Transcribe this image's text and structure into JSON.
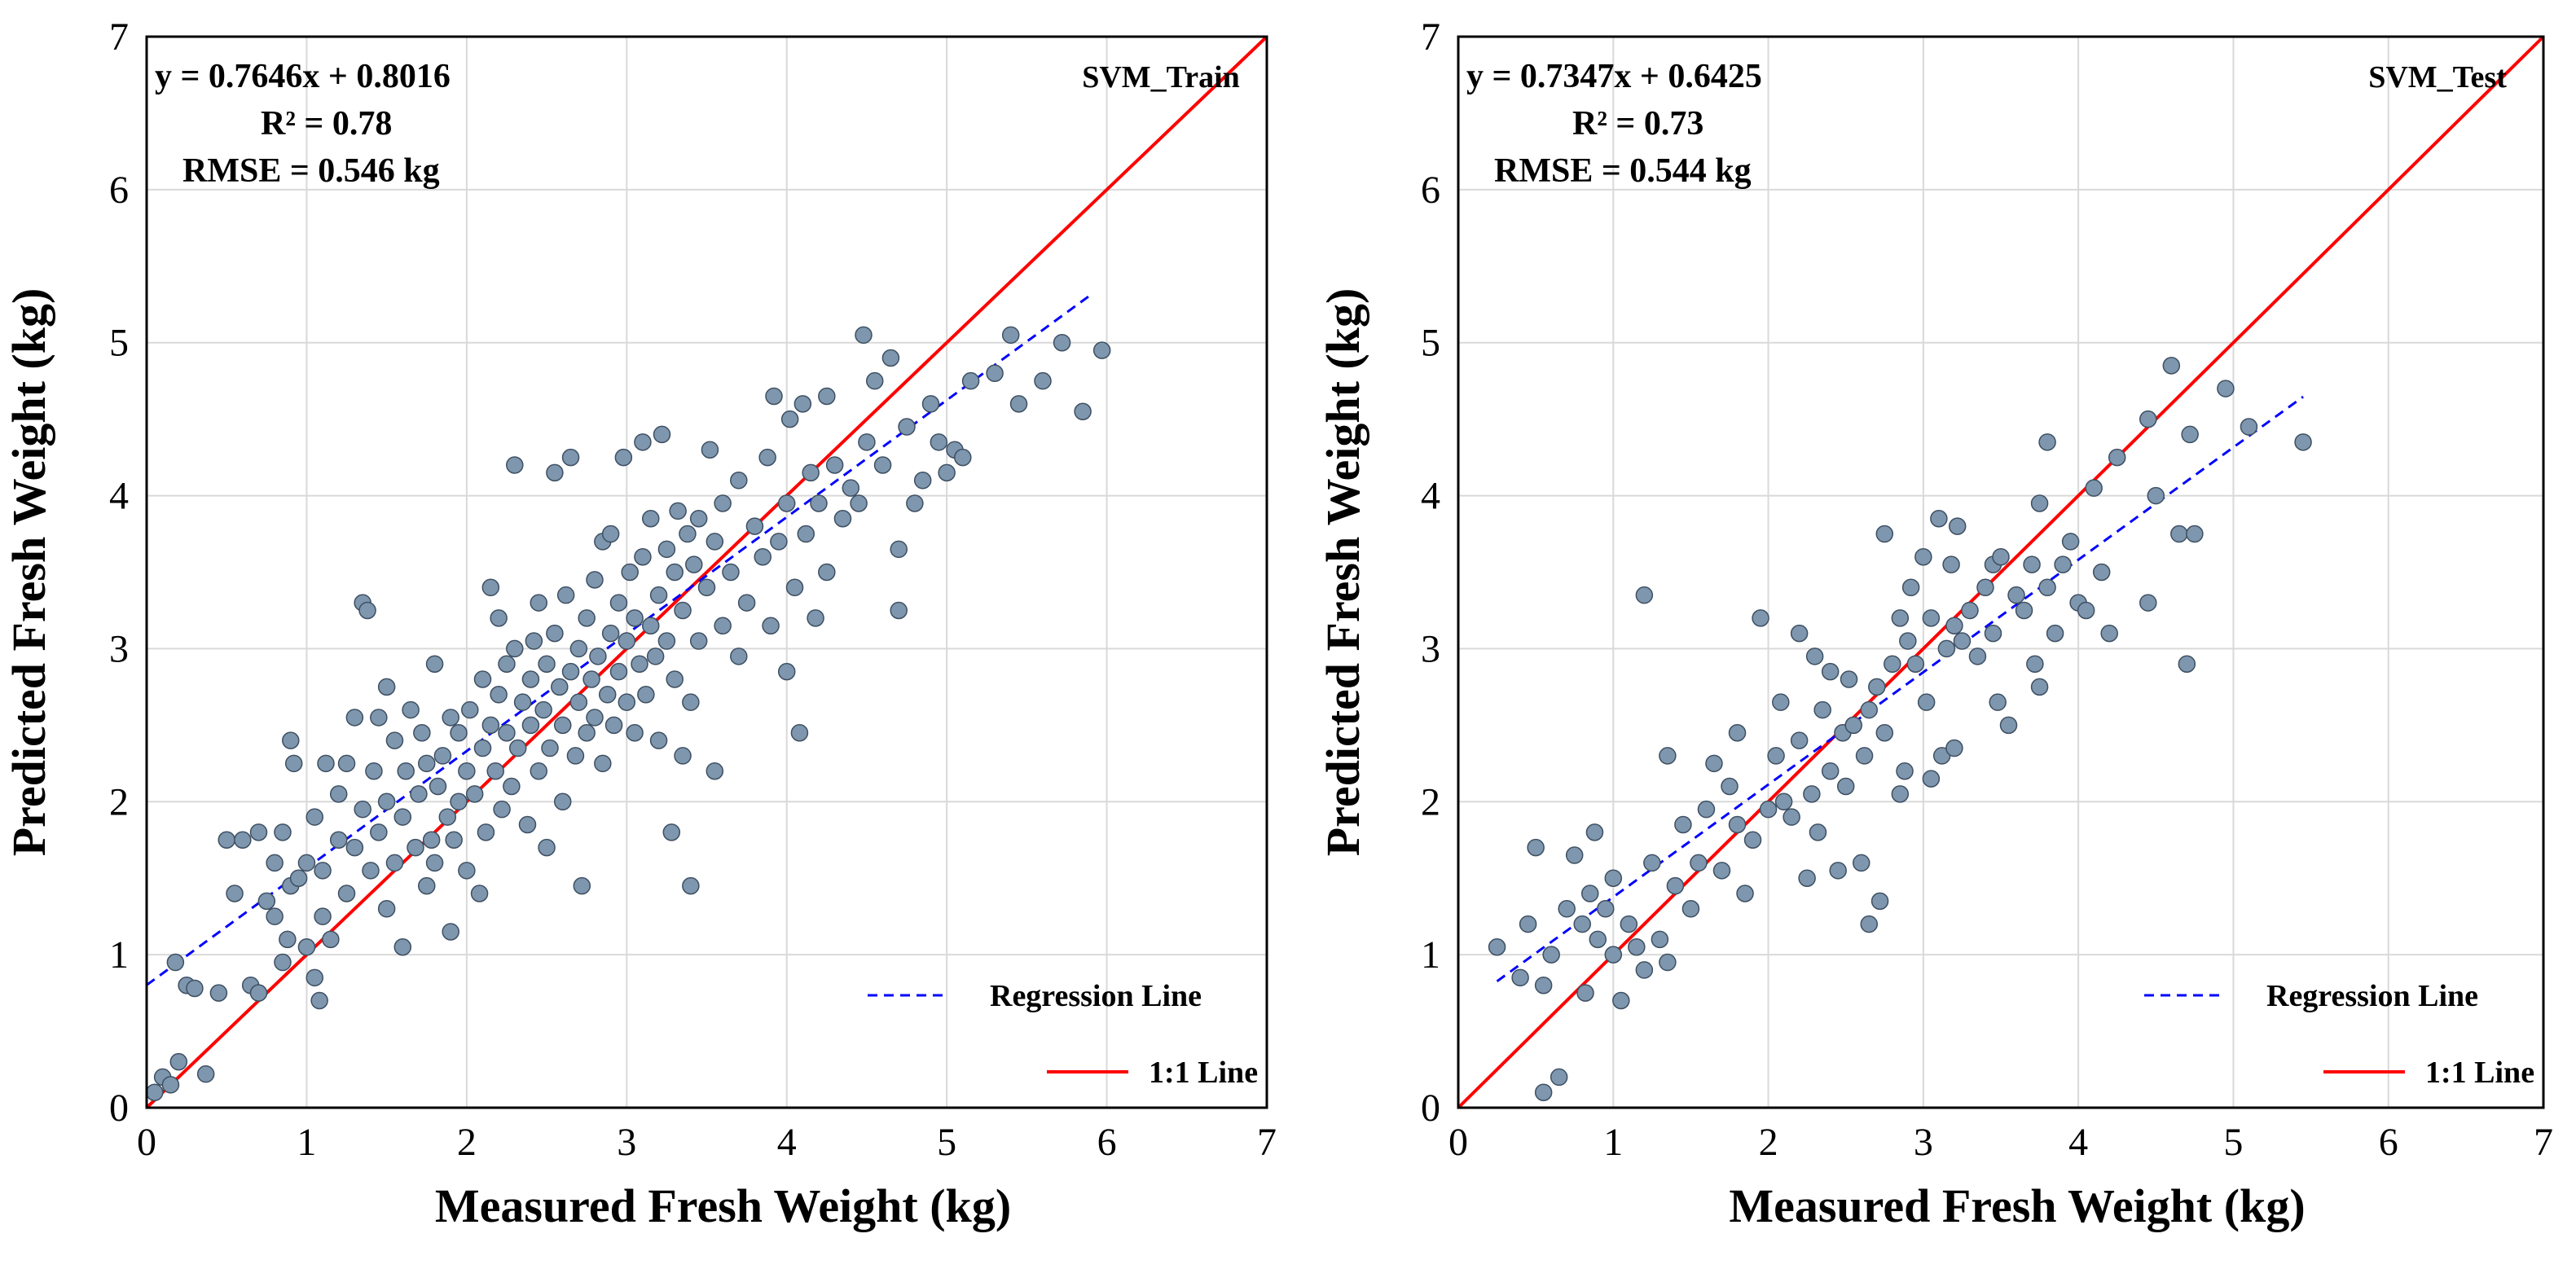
{
  "colors": {
    "one_to_one": "#ff0000",
    "regression": "#0000ff",
    "point_fill": "#7e97ae",
    "point_stroke": "#3e4f62",
    "grid": "#d9d9d9"
  },
  "chart_data": [
    {
      "type": "scatter",
      "tag": "SVM_Train",
      "equation": "y = 0.7646x + 0.8016",
      "r2": "R² = 0.78",
      "rmse": "RMSE = 0.546 kg",
      "slope": 0.7646,
      "intercept": 0.8016,
      "reg_x_range": [
        0,
        5.9
      ],
      "xlabel": "Measured Fresh Weight (kg)",
      "ylabel": "Predicted  Fresh Weight (kg)",
      "xlim": [
        0,
        7
      ],
      "ylim": [
        0,
        7
      ],
      "xticks": [
        "0",
        "1",
        "2",
        "3",
        "4",
        "5",
        "6",
        "7"
      ],
      "yticks": [
        "0",
        "1",
        "2",
        "3",
        "4",
        "5",
        "6",
        "7"
      ],
      "grid": true,
      "legend": {
        "position": "bottom-right",
        "regression_label": "Regression Line",
        "one_to_one_label": "1:1 Line"
      },
      "points": [
        [
          0.05,
          0.1
        ],
        [
          0.1,
          0.2
        ],
        [
          0.15,
          0.15
        ],
        [
          0.2,
          0.3
        ],
        [
          0.37,
          0.22
        ],
        [
          0.18,
          0.95
        ],
        [
          0.25,
          0.8
        ],
        [
          0.3,
          0.78
        ],
        [
          0.45,
          0.75
        ],
        [
          0.5,
          1.75
        ],
        [
          0.55,
          1.4
        ],
        [
          0.6,
          1.75
        ],
        [
          0.65,
          0.8
        ],
        [
          0.7,
          0.75
        ],
        [
          0.7,
          1.8
        ],
        [
          0.75,
          1.35
        ],
        [
          0.8,
          1.25
        ],
        [
          0.8,
          1.6
        ],
        [
          0.85,
          0.95
        ],
        [
          0.85,
          1.8
        ],
        [
          0.88,
          1.1
        ],
        [
          0.9,
          1.45
        ],
        [
          0.9,
          2.4
        ],
        [
          0.92,
          2.25
        ],
        [
          0.95,
          1.5
        ],
        [
          1.0,
          1.05
        ],
        [
          1.0,
          1.6
        ],
        [
          1.05,
          0.85
        ],
        [
          1.05,
          1.9
        ],
        [
          1.08,
          0.7
        ],
        [
          1.1,
          1.25
        ],
        [
          1.1,
          1.55
        ],
        [
          1.12,
          2.25
        ],
        [
          1.15,
          1.1
        ],
        [
          1.2,
          1.75
        ],
        [
          1.2,
          2.05
        ],
        [
          1.25,
          1.4
        ],
        [
          1.25,
          2.25
        ],
        [
          1.3,
          1.7
        ],
        [
          1.3,
          2.55
        ],
        [
          1.35,
          1.95
        ],
        [
          1.35,
          3.3
        ],
        [
          1.38,
          3.25
        ],
        [
          1.4,
          1.55
        ],
        [
          1.42,
          2.2
        ],
        [
          1.45,
          1.8
        ],
        [
          1.45,
          2.55
        ],
        [
          1.5,
          1.3
        ],
        [
          1.5,
          2.0
        ],
        [
          1.5,
          2.75
        ],
        [
          1.55,
          1.6
        ],
        [
          1.55,
          2.4
        ],
        [
          1.6,
          1.05
        ],
        [
          1.6,
          1.9
        ],
        [
          1.62,
          2.2
        ],
        [
          1.65,
          2.6
        ],
        [
          1.68,
          1.7
        ],
        [
          1.7,
          2.05
        ],
        [
          1.72,
          2.45
        ],
        [
          1.75,
          1.45
        ],
        [
          1.75,
          2.25
        ],
        [
          1.78,
          1.75
        ],
        [
          1.8,
          1.6
        ],
        [
          1.8,
          2.9
        ],
        [
          1.82,
          2.1
        ],
        [
          1.85,
          2.3
        ],
        [
          1.88,
          1.9
        ],
        [
          1.9,
          2.55
        ],
        [
          1.9,
          1.15
        ],
        [
          1.92,
          1.75
        ],
        [
          1.95,
          2.0
        ],
        [
          1.95,
          2.45
        ],
        [
          2.0,
          1.55
        ],
        [
          2.0,
          2.2
        ],
        [
          2.02,
          2.6
        ],
        [
          2.05,
          2.05
        ],
        [
          2.08,
          1.4
        ],
        [
          2.1,
          2.35
        ],
        [
          2.1,
          2.8
        ],
        [
          2.12,
          1.8
        ],
        [
          2.15,
          2.5
        ],
        [
          2.15,
          3.4
        ],
        [
          2.18,
          2.2
        ],
        [
          2.2,
          2.7
        ],
        [
          2.2,
          3.2
        ],
        [
          2.22,
          1.95
        ],
        [
          2.25,
          2.45
        ],
        [
          2.25,
          2.9
        ],
        [
          2.28,
          2.1
        ],
        [
          2.3,
          3.0
        ],
        [
          2.3,
          4.2
        ],
        [
          2.32,
          2.35
        ],
        [
          2.35,
          2.65
        ],
        [
          2.38,
          1.85
        ],
        [
          2.4,
          2.5
        ],
        [
          2.4,
          2.8
        ],
        [
          2.42,
          3.05
        ],
        [
          2.45,
          2.2
        ],
        [
          2.45,
          3.3
        ],
        [
          2.48,
          2.6
        ],
        [
          2.5,
          1.7
        ],
        [
          2.5,
          2.9
        ],
        [
          2.52,
          2.35
        ],
        [
          2.55,
          3.1
        ],
        [
          2.55,
          4.15
        ],
        [
          2.58,
          2.75
        ],
        [
          2.6,
          2.0
        ],
        [
          2.6,
          2.5
        ],
        [
          2.62,
          3.35
        ],
        [
          2.65,
          2.85
        ],
        [
          2.65,
          4.25
        ],
        [
          2.68,
          2.3
        ],
        [
          2.7,
          2.65
        ],
        [
          2.7,
          3.0
        ],
        [
          2.72,
          1.45
        ],
        [
          2.75,
          2.45
        ],
        [
          2.75,
          3.2
        ],
        [
          2.78,
          2.8
        ],
        [
          2.8,
          2.55
        ],
        [
          2.8,
          3.45
        ],
        [
          2.82,
          2.95
        ],
        [
          2.85,
          2.25
        ],
        [
          2.85,
          3.7
        ],
        [
          2.88,
          2.7
        ],
        [
          2.9,
          3.1
        ],
        [
          2.9,
          3.75
        ],
        [
          2.92,
          2.5
        ],
        [
          2.95,
          2.85
        ],
        [
          2.95,
          3.3
        ],
        [
          2.98,
          4.25
        ],
        [
          3.0,
          2.65
        ],
        [
          3.0,
          3.05
        ],
        [
          3.02,
          3.5
        ],
        [
          3.05,
          2.45
        ],
        [
          3.05,
          3.2
        ],
        [
          3.08,
          2.9
        ],
        [
          3.1,
          3.6
        ],
        [
          3.1,
          4.35
        ],
        [
          3.12,
          2.7
        ],
        [
          3.15,
          3.15
        ],
        [
          3.15,
          3.85
        ],
        [
          3.18,
          2.95
        ],
        [
          3.2,
          2.4
        ],
        [
          3.2,
          3.35
        ],
        [
          3.22,
          4.4
        ],
        [
          3.25,
          3.05
        ],
        [
          3.25,
          3.65
        ],
        [
          3.28,
          1.8
        ],
        [
          3.3,
          2.8
        ],
        [
          3.3,
          3.5
        ],
        [
          3.32,
          3.9
        ],
        [
          3.35,
          2.3
        ],
        [
          3.35,
          3.25
        ],
        [
          3.38,
          3.75
        ],
        [
          3.4,
          1.45
        ],
        [
          3.4,
          2.65
        ],
        [
          3.42,
          3.55
        ],
        [
          3.45,
          3.05
        ],
        [
          3.45,
          3.85
        ],
        [
          3.5,
          3.4
        ],
        [
          3.52,
          4.3
        ],
        [
          3.55,
          2.2
        ],
        [
          3.55,
          3.7
        ],
        [
          3.6,
          3.15
        ],
        [
          3.6,
          3.95
        ],
        [
          3.65,
          3.5
        ],
        [
          3.7,
          2.95
        ],
        [
          3.7,
          4.1
        ],
        [
          3.75,
          3.3
        ],
        [
          3.8,
          3.8
        ],
        [
          3.85,
          3.6
        ],
        [
          3.88,
          4.25
        ],
        [
          3.9,
          3.15
        ],
        [
          3.92,
          4.65
        ],
        [
          3.95,
          3.7
        ],
        [
          4.0,
          2.85
        ],
        [
          4.0,
          3.95
        ],
        [
          4.02,
          4.5
        ],
        [
          4.05,
          3.4
        ],
        [
          4.08,
          2.45
        ],
        [
          4.1,
          4.6
        ],
        [
          4.12,
          3.75
        ],
        [
          4.15,
          4.15
        ],
        [
          4.18,
          3.2
        ],
        [
          4.2,
          3.95
        ],
        [
          4.25,
          3.5
        ],
        [
          4.25,
          4.65
        ],
        [
          4.3,
          4.2
        ],
        [
          4.35,
          3.85
        ],
        [
          4.4,
          4.05
        ],
        [
          4.45,
          3.95
        ],
        [
          4.48,
          5.05
        ],
        [
          4.5,
          4.35
        ],
        [
          4.55,
          4.75
        ],
        [
          4.6,
          4.2
        ],
        [
          4.65,
          4.9
        ],
        [
          4.7,
          3.25
        ],
        [
          4.7,
          3.65
        ],
        [
          4.75,
          4.45
        ],
        [
          4.8,
          3.95
        ],
        [
          4.85,
          4.1
        ],
        [
          4.9,
          4.6
        ],
        [
          4.95,
          4.35
        ],
        [
          5.0,
          4.15
        ],
        [
          5.05,
          4.3
        ],
        [
          5.1,
          4.25
        ],
        [
          5.15,
          4.75
        ],
        [
          5.3,
          4.8
        ],
        [
          5.4,
          5.05
        ],
        [
          5.45,
          4.6
        ],
        [
          5.6,
          4.75
        ],
        [
          5.72,
          5.0
        ],
        [
          5.85,
          4.55
        ],
        [
          5.97,
          4.95
        ]
      ]
    },
    {
      "type": "scatter",
      "tag": "SVM_Test",
      "equation": "y = 0.7347x + 0.6425",
      "r2": "R² = 0.73",
      "rmse": "RMSE = 0.544 kg",
      "slope": 0.7347,
      "intercept": 0.6425,
      "reg_x_range": [
        0.25,
        5.45
      ],
      "xlabel": "Measured Fresh Weight (kg)",
      "ylabel": "Predicted  Fresh Weight (kg)",
      "xlim": [
        0,
        7
      ],
      "ylim": [
        0,
        7
      ],
      "xticks": [
        "0",
        "1",
        "2",
        "3",
        "4",
        "5",
        "6",
        "7"
      ],
      "yticks": [
        "0",
        "1",
        "2",
        "3",
        "4",
        "5",
        "6",
        "7"
      ],
      "grid": true,
      "legend": {
        "position": "bottom-right",
        "regression_label": "Regression Line",
        "one_to_one_label": "1:1 Line"
      },
      "points": [
        [
          0.25,
          1.05
        ],
        [
          0.4,
          0.85
        ],
        [
          0.45,
          1.2
        ],
        [
          0.5,
          1.7
        ],
        [
          0.55,
          0.8
        ],
        [
          0.55,
          0.1
        ],
        [
          0.6,
          1.0
        ],
        [
          0.65,
          0.2
        ],
        [
          0.7,
          1.3
        ],
        [
          0.75,
          1.65
        ],
        [
          0.8,
          1.2
        ],
        [
          0.82,
          0.75
        ],
        [
          0.85,
          1.4
        ],
        [
          0.88,
          1.8
        ],
        [
          0.9,
          1.1
        ],
        [
          0.95,
          1.3
        ],
        [
          1.0,
          1.0
        ],
        [
          1.0,
          1.5
        ],
        [
          1.05,
          0.7
        ],
        [
          1.1,
          1.2
        ],
        [
          1.15,
          1.05
        ],
        [
          1.2,
          0.9
        ],
        [
          1.2,
          3.35
        ],
        [
          1.25,
          1.6
        ],
        [
          1.3,
          1.1
        ],
        [
          1.35,
          0.95
        ],
        [
          1.35,
          2.3
        ],
        [
          1.4,
          1.45
        ],
        [
          1.45,
          1.85
        ],
        [
          1.5,
          1.3
        ],
        [
          1.55,
          1.6
        ],
        [
          1.6,
          1.95
        ],
        [
          1.65,
          2.25
        ],
        [
          1.7,
          1.55
        ],
        [
          1.75,
          2.1
        ],
        [
          1.8,
          1.85
        ],
        [
          1.8,
          2.45
        ],
        [
          1.85,
          1.4
        ],
        [
          1.9,
          1.75
        ],
        [
          1.95,
          3.2
        ],
        [
          2.0,
          1.95
        ],
        [
          2.05,
          2.3
        ],
        [
          2.08,
          2.65
        ],
        [
          2.1,
          2.0
        ],
        [
          2.15,
          1.9
        ],
        [
          2.2,
          2.4
        ],
        [
          2.2,
          3.1
        ],
        [
          2.25,
          1.5
        ],
        [
          2.28,
          2.05
        ],
        [
          2.3,
          2.95
        ],
        [
          2.32,
          1.8
        ],
        [
          2.35,
          2.6
        ],
        [
          2.4,
          2.2
        ],
        [
          2.4,
          2.85
        ],
        [
          2.45,
          1.55
        ],
        [
          2.48,
          2.45
        ],
        [
          2.5,
          2.1
        ],
        [
          2.52,
          2.8
        ],
        [
          2.55,
          2.5
        ],
        [
          2.6,
          1.6
        ],
        [
          2.62,
          2.3
        ],
        [
          2.65,
          2.6
        ],
        [
          2.65,
          1.2
        ],
        [
          2.7,
          2.75
        ],
        [
          2.72,
          1.35
        ],
        [
          2.75,
          2.45
        ],
        [
          2.75,
          3.75
        ],
        [
          2.8,
          2.9
        ],
        [
          2.85,
          2.05
        ],
        [
          2.85,
          3.2
        ],
        [
          2.88,
          2.2
        ],
        [
          2.9,
          3.05
        ],
        [
          2.92,
          3.4
        ],
        [
          2.95,
          2.9
        ],
        [
          3.0,
          3.6
        ],
        [
          3.02,
          2.65
        ],
        [
          3.05,
          3.2
        ],
        [
          3.05,
          2.15
        ],
        [
          3.1,
          3.85
        ],
        [
          3.12,
          2.3
        ],
        [
          3.15,
          3.0
        ],
        [
          3.18,
          3.55
        ],
        [
          3.2,
          2.35
        ],
        [
          3.2,
          3.15
        ],
        [
          3.22,
          3.8
        ],
        [
          3.25,
          3.05
        ],
        [
          3.3,
          3.25
        ],
        [
          3.35,
          2.95
        ],
        [
          3.4,
          3.4
        ],
        [
          3.45,
          3.1
        ],
        [
          3.45,
          3.55
        ],
        [
          3.48,
          2.65
        ],
        [
          3.5,
          3.6
        ],
        [
          3.55,
          2.5
        ],
        [
          3.6,
          3.35
        ],
        [
          3.65,
          3.25
        ],
        [
          3.7,
          3.55
        ],
        [
          3.72,
          2.9
        ],
        [
          3.75,
          3.95
        ],
        [
          3.75,
          2.75
        ],
        [
          3.8,
          3.4
        ],
        [
          3.8,
          4.35
        ],
        [
          3.85,
          3.1
        ],
        [
          3.9,
          3.55
        ],
        [
          3.95,
          3.7
        ],
        [
          4.0,
          3.3
        ],
        [
          4.05,
          3.25
        ],
        [
          4.1,
          4.05
        ],
        [
          4.15,
          3.5
        ],
        [
          4.2,
          3.1
        ],
        [
          4.25,
          4.25
        ],
        [
          4.45,
          3.3
        ],
        [
          4.45,
          4.5
        ],
        [
          4.5,
          4.0
        ],
        [
          4.6,
          4.85
        ],
        [
          4.65,
          3.75
        ],
        [
          4.7,
          2.9
        ],
        [
          4.72,
          4.4
        ],
        [
          4.75,
          3.75
        ],
        [
          4.95,
          4.7
        ],
        [
          5.1,
          4.45
        ],
        [
          5.45,
          4.35
        ]
      ]
    }
  ]
}
